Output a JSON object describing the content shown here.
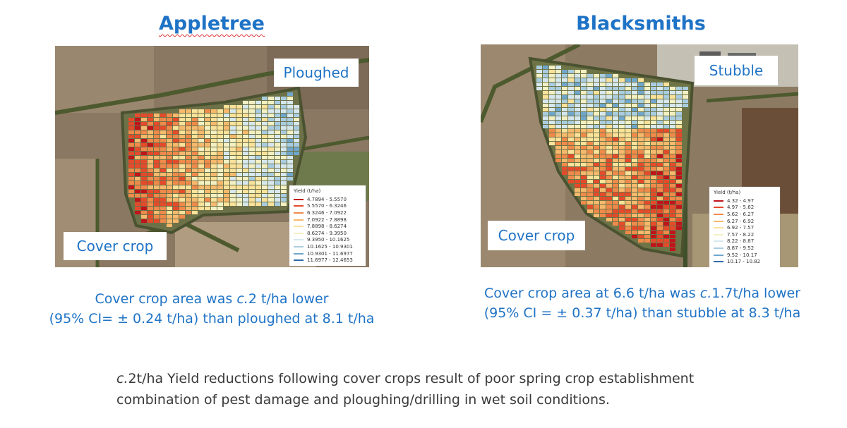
{
  "left": {
    "title": "Appletree",
    "tag_top": "Ploughed",
    "tag_bottom": "Cover crop",
    "legend": {
      "title": "Yield (t/ha)",
      "items": [
        {
          "label": "4.7894 - 5.5570",
          "color": "#c0141a"
        },
        {
          "label": "5.5570 - 6.3246",
          "color": "#e54a2b"
        },
        {
          "label": "6.3246 - 7.0922",
          "color": "#f08a4b"
        },
        {
          "label": "7.0922 - 7.8898",
          "color": "#f7b96d"
        },
        {
          "label": "7.8898 - 8.6274",
          "color": "#fbe29a"
        },
        {
          "label": "8.6274 - 9.3950",
          "color": "#f3f0c3"
        },
        {
          "label": "9.3950 - 10.1625",
          "color": "#d6e8ee"
        },
        {
          "label": "10.1625 - 10.9301",
          "color": "#a9cde0"
        },
        {
          "label": "10.9301 - 11.6977",
          "color": "#6fa6cb"
        },
        {
          "label": "11.6977 - 12.4653",
          "color": "#2e6aa6"
        }
      ]
    },
    "caption_line1_pre": "Cover crop area was ",
    "caption_line1_em": "c.",
    "caption_line1_post": "2 t/ha lower",
    "caption_line2": "(95% CI= ± 0.24 t/ha) than ploughed at 8.1 t/ha"
  },
  "right": {
    "title": "Blacksmiths",
    "tag_top": "Stubble",
    "tag_bottom": "Cover crop",
    "legend": {
      "title": "Yield (t/ha)",
      "items": [
        {
          "label": "4.32 - 4.97",
          "color": "#c0141a"
        },
        {
          "label": "4.97 - 5.62",
          "color": "#e54a2b"
        },
        {
          "label": "5.62 - 6.27",
          "color": "#f08a4b"
        },
        {
          "label": "6.27 - 6.92",
          "color": "#f7b96d"
        },
        {
          "label": "6.92 - 7.57",
          "color": "#fbe29a"
        },
        {
          "label": "7.57 - 8.22",
          "color": "#f3f0c3"
        },
        {
          "label": "8.22 - 8.87",
          "color": "#d6e8ee"
        },
        {
          "label": "8.87 - 9.52",
          "color": "#a9cde0"
        },
        {
          "label": "9.52 - 10.17",
          "color": "#6fa6cb"
        },
        {
          "label": "10.17 - 10.82",
          "color": "#2e6aa6"
        }
      ]
    },
    "caption_line1_pre": "Cover crop area at 6.6 t/ha was ",
    "caption_line1_em": "c.",
    "caption_line1_post": "1.7t/ha lower",
    "caption_line2": "(95% CI = ± 0.37 t/ha) than stubble at 8.3 t/ha"
  },
  "footer": {
    "line1_em": "c.",
    "line1_post": "2t/ha Yield reductions following cover crops result of poor spring crop establishment",
    "line2": "combination of pest damage and ploughing/drilling in wet soil conditions."
  }
}
